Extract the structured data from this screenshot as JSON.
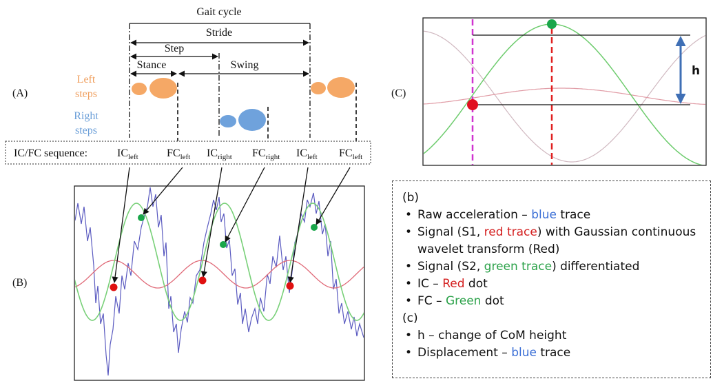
{
  "panel_a": {
    "label": "(A)",
    "gait_cycle": "Gait cycle",
    "stride": "Stride",
    "step": "Step",
    "stance": "Stance",
    "swing": "Swing",
    "left_steps_1": "Left",
    "left_steps_2": "steps",
    "right_steps_1": "Right",
    "right_steps_2": "steps",
    "sequence_label": "IC/FC sequence:",
    "events": [
      {
        "main": "IC",
        "sub": "left"
      },
      {
        "main": "FC",
        "sub": "left"
      },
      {
        "main": "IC",
        "sub": "right"
      },
      {
        "main": "FC",
        "sub": "right"
      },
      {
        "main": "IC",
        "sub": "left"
      },
      {
        "main": "FC",
        "sub": "left"
      }
    ],
    "colors": {
      "left": "#f0a060",
      "right": "#6a9ed8"
    }
  },
  "panel_b": {
    "label": "(B)",
    "colors": {
      "raw": "#5a5ac0",
      "s1": "#e06070",
      "s2": "#6ec86e",
      "ic": "#e01010",
      "fc": "#1aa64a"
    }
  },
  "panel_c": {
    "label": "(C)",
    "h_label": "h"
  },
  "legend": {
    "b_header": "(b)",
    "b_items": [
      [
        {
          "t": "Raw acceleration – "
        },
        {
          "t": "blue",
          "c": "blue"
        },
        {
          "t": " trace"
        }
      ],
      [
        {
          "t": "Signal (S1, "
        },
        {
          "t": "red trace",
          "c": "red"
        },
        {
          "t": ") with Gaussian continuous wavelet transform (Red)"
        }
      ],
      [
        {
          "t": "Signal (S2, "
        },
        {
          "t": "green trace",
          "c": "green"
        },
        {
          "t": ") differentiated"
        }
      ],
      [
        {
          "t": "IC – "
        },
        {
          "t": "Red",
          "c": "red"
        },
        {
          "t": " dot"
        }
      ],
      [
        {
          "t": "FC – "
        },
        {
          "t": "Green",
          "c": "green"
        },
        {
          "t": " dot"
        }
      ]
    ],
    "c_header": "(c)",
    "c_items": [
      [
        {
          "t": "h – change of CoM height"
        }
      ],
      [
        {
          "t": "Displacement – "
        },
        {
          "t": "blue",
          "c": "blue"
        },
        {
          "t": " trace"
        }
      ]
    ]
  }
}
